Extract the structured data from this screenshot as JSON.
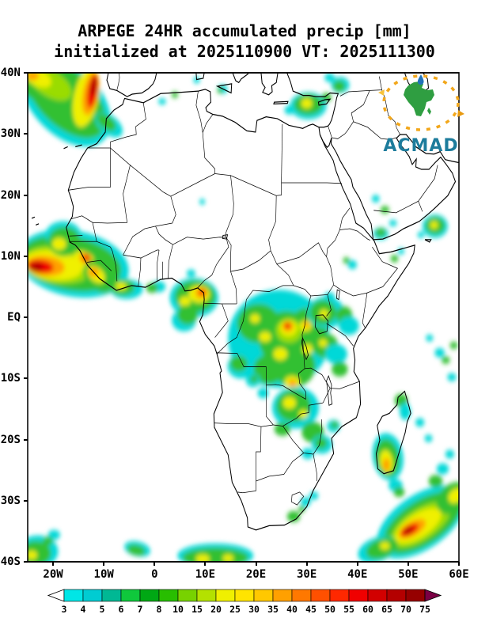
{
  "title": {
    "line1": "ARPEGE 24HR accumulated precip [mm]",
    "line2": "initialized at 2025110900 VT: 2025111300"
  },
  "logo": {
    "text": "ACMAD"
  },
  "axes": {
    "y_ticks": [
      "40N",
      "30N",
      "20N",
      "10N",
      "EQ",
      "10S",
      "20S",
      "30S",
      "40S"
    ],
    "x_ticks": [
      "20W",
      "10W",
      "0",
      "10E",
      "20E",
      "30E",
      "40E",
      "50E",
      "60E"
    ]
  },
  "colorbar": {
    "levels": [
      3,
      4,
      5,
      6,
      7,
      8,
      10,
      15,
      20,
      25,
      30,
      35,
      40,
      45,
      50,
      55,
      60,
      65,
      70,
      75
    ],
    "colors": [
      "#00e6e6",
      "#00ccd2",
      "#00b894",
      "#0fc83c",
      "#00a814",
      "#28be00",
      "#78d200",
      "#b4e100",
      "#f0f000",
      "#ffe400",
      "#ffc800",
      "#ffa000",
      "#ff7800",
      "#ff5000",
      "#ff2800",
      "#f00000",
      "#d20000",
      "#b40000",
      "#960000"
    ],
    "under_color": "#ffffff",
    "over_color": "#7a0045",
    "units": "mm"
  },
  "chart_data": {
    "type": "heatmap",
    "title": "ARPEGE 24HR accumulated precip [mm]",
    "subtitle": "initialized at 2025110900 VT: 2025111300",
    "model": "ARPEGE",
    "variable": "24-hour accumulated precipitation",
    "units": "mm",
    "initialization": "2025110900",
    "valid_time": "2025111300",
    "source_logo": "ACMAD",
    "xlim": [
      -25,
      60
    ],
    "ylim": [
      -40,
      40
    ],
    "x_ticks": [
      "20W",
      "10W",
      "0",
      "10E",
      "20E",
      "30E",
      "40E",
      "50E",
      "60E"
    ],
    "y_ticks": [
      "40N",
      "30N",
      "20N",
      "10N",
      "EQ",
      "10S",
      "20S",
      "30S",
      "40S"
    ],
    "shading_levels_mm": [
      3,
      4,
      5,
      6,
      7,
      8,
      10,
      15,
      20,
      25,
      30,
      35,
      40,
      45,
      50,
      55,
      60,
      65,
      70,
      75
    ],
    "grid": false,
    "legend_position": "bottom",
    "precip_maxima": [
      {
        "area": "NE Atlantic off Morocco and Iberia",
        "lon": -12,
        "lat": 37,
        "approx_max_mm": 70
      },
      {
        "area": "West African coast (Senegal to Sierra Leone) and eastern Atlantic",
        "lon": -21,
        "lat": 8.5,
        "approx_max_mm": 70
      },
      {
        "area": "Cameroon coast / Gulf of Guinea",
        "lon": 9,
        "lat": 4,
        "approx_max_mm": 55
      },
      {
        "area": "Congo basin and Great Lakes (west of Lake Victoria)",
        "lon": 26,
        "lat": -1.5,
        "approx_max_mm": 60
      },
      {
        "area": "Eastern Mediterranean",
        "lon": 30,
        "lat": 35,
        "approx_max_mm": 25
      },
      {
        "area": "Zambia / northern Zimbabwe",
        "lon": 27.5,
        "lat": -14.5,
        "approx_max_mm": 25
      },
      {
        "area": "Southern Madagascar",
        "lon": 45.8,
        "lat": -23.5,
        "approx_max_mm": 45
      },
      {
        "area": "SW Indian Ocean southeast of Madagascar",
        "lon": 50.5,
        "lat": -34.5,
        "approx_max_mm": 75
      },
      {
        "area": "Arabian Sea",
        "lon": 55.3,
        "lat": 15,
        "approx_max_mm": 25
      },
      {
        "area": "Southern Ocean band 0E-20E near 39S",
        "lon": 12,
        "lat": -39,
        "approx_max_mm": 25
      },
      {
        "area": "South Atlantic SW corner",
        "lon": -23.5,
        "lat": -38.5,
        "approx_max_mm": 25
      }
    ]
  }
}
